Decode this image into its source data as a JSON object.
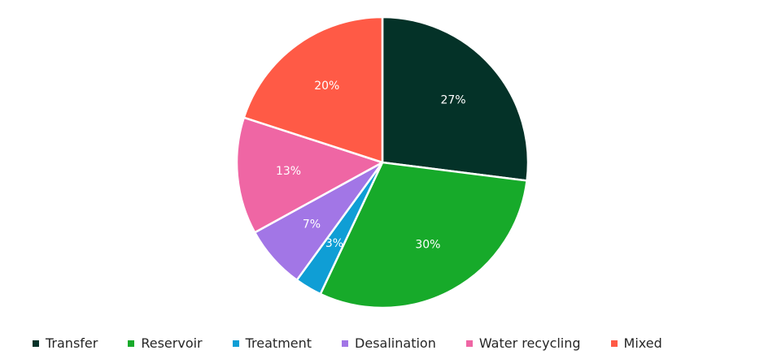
{
  "chart_data": {
    "type": "pie",
    "title": "",
    "legend_position": "bottom",
    "slices": [
      {
        "name": "Transfer",
        "value": 27,
        "label": "27%",
        "color": "#043228"
      },
      {
        "name": "Reservoir",
        "value": 30,
        "label": "30%",
        "color": "#17AA2A"
      },
      {
        "name": "Treatment",
        "value": 3,
        "label": "3%",
        "color": "#0F9ED5"
      },
      {
        "name": "Desalination",
        "value": 7,
        "label": "7%",
        "color": "#A276E6"
      },
      {
        "name": "Water recycling",
        "value": 13,
        "label": "13%",
        "color": "#EF66A4"
      },
      {
        "name": "Mixed",
        "value": 20,
        "label": "20%",
        "color": "#FF5A46"
      }
    ]
  }
}
